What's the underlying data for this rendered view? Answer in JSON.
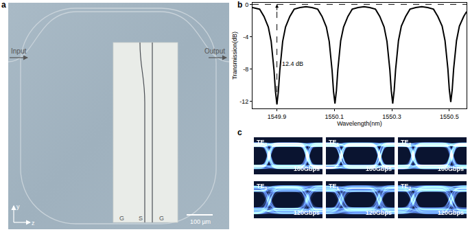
{
  "panels": {
    "a": {
      "label": "a",
      "input": "Input",
      "output": "Output",
      "electrode_labels": [
        "G",
        "S",
        "G"
      ],
      "scale_bar": "100 µm",
      "axis_labels": [
        "y",
        "z"
      ]
    },
    "b": {
      "label": "b"
    },
    "c": {
      "label": "c",
      "modes": [
        {
          "base": "TE",
          "sub": "0"
        },
        {
          "base": "TE",
          "sub": "1"
        },
        {
          "base": "TE",
          "sub": "2"
        }
      ],
      "rates": [
        "100Gbps",
        "120Gbps"
      ]
    }
  },
  "chart_data": {
    "type": "line",
    "x_label": "Wavelength(nm)",
    "y_label": "Transmission(dB)",
    "color": "#000000",
    "grid": false,
    "x": [
      1549.815,
      1549.84,
      1549.855,
      1549.87,
      1549.88,
      1549.89,
      1549.895,
      1549.9,
      1549.905,
      1549.91,
      1549.92,
      1549.93,
      1549.945,
      1549.96,
      1549.98,
      1550.001,
      1550.022,
      1550.042,
      1550.057,
      1550.072,
      1550.082,
      1550.092,
      1550.097,
      1550.102,
      1550.107,
      1550.112,
      1550.122,
      1550.132,
      1550.147,
      1550.162,
      1550.182,
      1550.203,
      1550.223,
      1550.243,
      1550.258,
      1550.273,
      1550.283,
      1550.293,
      1550.298,
      1550.303,
      1550.308,
      1550.313,
      1550.323,
      1550.333,
      1550.348,
      1550.363,
      1550.383,
      1550.404,
      1550.425,
      1550.445,
      1550.46,
      1550.475,
      1550.485,
      1550.495,
      1550.5,
      1550.505,
      1550.51,
      1550.515,
      1550.525,
      1550.535,
      1550.55,
      1550.56
    ],
    "values": [
      -0.4,
      -0.6,
      -1.5,
      -2.8,
      -4.6,
      -8.2,
      -10.8,
      -12.4,
      -10.8,
      -8.2,
      -4.6,
      -2.8,
      -1.5,
      -0.6,
      -0.4,
      -0.3,
      -0.4,
      -0.6,
      -1.5,
      -2.8,
      -4.6,
      -8.2,
      -10.8,
      -12.3,
      -10.7,
      -8.1,
      -4.5,
      -2.8,
      -1.5,
      -0.6,
      -0.4,
      -0.3,
      -0.4,
      -0.6,
      -1.5,
      -2.8,
      -4.6,
      -8.1,
      -10.7,
      -12.3,
      -10.7,
      -8.1,
      -4.5,
      -2.7,
      -1.5,
      -0.6,
      -0.4,
      -0.3,
      -0.4,
      -0.6,
      -1.5,
      -2.7,
      -4.5,
      -8.0,
      -10.6,
      -12.1,
      -10.6,
      -8.0,
      -4.5,
      -2.7,
      -1.5,
      -0.9
    ],
    "xlim": [
      1549.815,
      1550.56
    ],
    "xticks": [
      1549.9,
      1550.1,
      1550.3,
      1550.5
    ],
    "ylim": [
      -12.9,
      0.2
    ],
    "yticks": [
      0,
      -4,
      -8,
      -12
    ],
    "annotations": [
      {
        "text": "12.4 dB",
        "x": 1549.9,
        "y_start": -12.4,
        "y_end": 0
      }
    ],
    "reference_lines": [
      {
        "y": 0,
        "line_style": "dashed"
      }
    ]
  }
}
